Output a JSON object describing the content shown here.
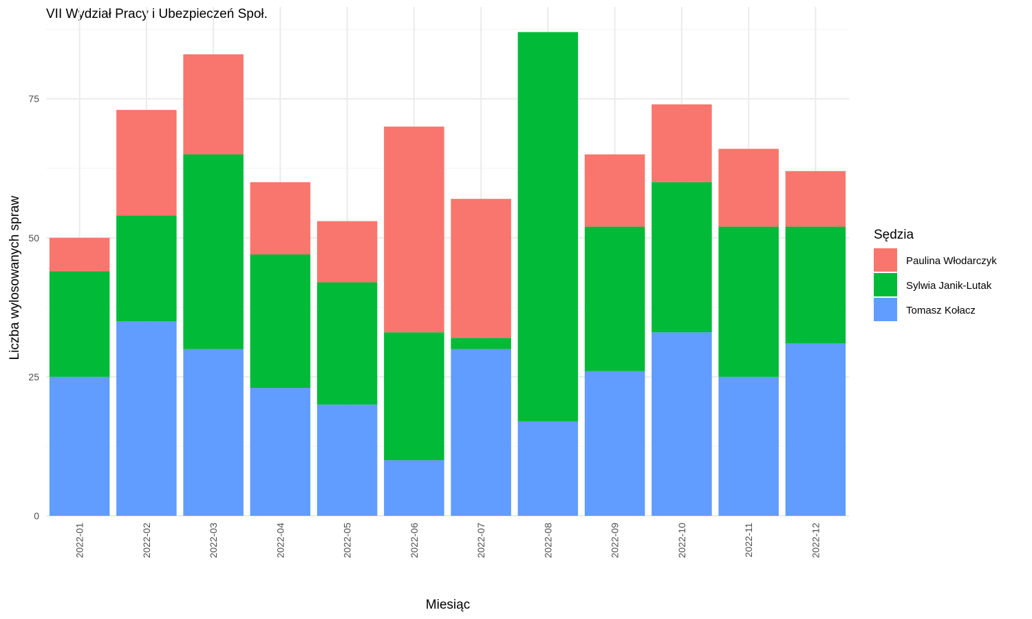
{
  "chart_data": {
    "type": "bar",
    "stacked": true,
    "title": "VII Wydział Pracy i Ubezpieczeń Społ.",
    "xlabel": "Miesiąc",
    "ylabel": "Liczba wylosowanych spraw",
    "ylim": [
      0,
      90
    ],
    "yticks": [
      0,
      25,
      50,
      75
    ],
    "grid": true,
    "legend": {
      "title": "Sędzia",
      "position": "right"
    },
    "categories": [
      "2022-01",
      "2022-02",
      "2022-03",
      "2022-04",
      "2022-05",
      "2022-06",
      "2022-07",
      "2022-08",
      "2022-09",
      "2022-10",
      "2022-11",
      "2022-12"
    ],
    "series": [
      {
        "name": "Tomasz Kołacz",
        "color": "#619CFF",
        "values": [
          25,
          35,
          30,
          23,
          20,
          10,
          30,
          17,
          26,
          33,
          25,
          31
        ]
      },
      {
        "name": "Sylwia Janik-Lutak",
        "color": "#00BA38",
        "values": [
          19,
          19,
          35,
          24,
          22,
          23,
          2,
          70,
          26,
          27,
          27,
          21
        ]
      },
      {
        "name": "Paulina Włodarczyk",
        "color": "#F8766D",
        "values": [
          6,
          19,
          18,
          13,
          11,
          37,
          25,
          0,
          13,
          14,
          14,
          10
        ]
      }
    ],
    "legend_order": [
      "Paulina Włodarczyk",
      "Sylwia Janik-Lutak",
      "Tomasz Kołacz"
    ]
  }
}
